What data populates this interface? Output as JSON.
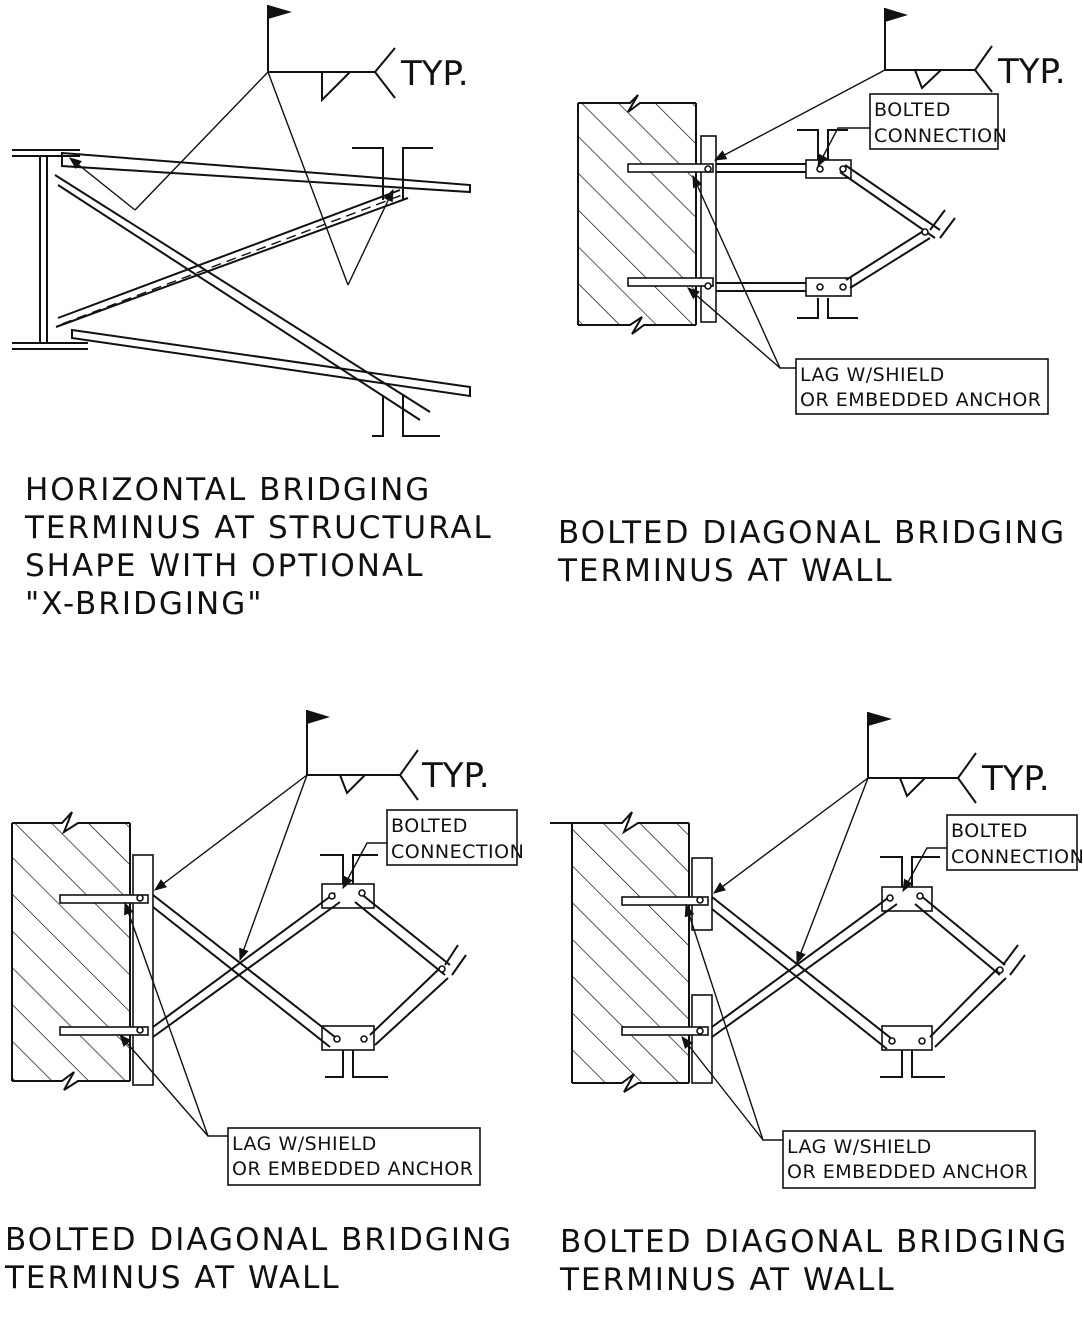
{
  "weld_note": "TYP.",
  "panels": [
    {
      "caption_lines": [
        "HORIZONTAL BRIDGING",
        "TERMINUS AT STRUCTURAL",
        "SHAPE WITH OPTIONAL",
        "\"X-BRIDGING\""
      ]
    },
    {
      "caption_lines": [
        "BOLTED DIAGONAL BRIDGING",
        "TERMINUS AT WALL"
      ],
      "bolted_label": [
        "BOLTED",
        "CONNECTION"
      ],
      "anchor_label": [
        "LAG W/SHIELD",
        "OR EMBEDDED ANCHOR"
      ]
    },
    {
      "caption_lines": [
        "BOLTED DIAGONAL BRIDGING",
        "TERMINUS AT WALL"
      ],
      "bolted_label": [
        "BOLTED",
        "CONNECTION"
      ],
      "anchor_label": [
        "LAG W/SHIELD",
        "OR EMBEDDED ANCHOR"
      ]
    },
    {
      "caption_lines": [
        "BOLTED DIAGONAL BRIDGING",
        "TERMINUS AT WALL"
      ],
      "bolted_label": [
        "BOLTED",
        "CONNECTION"
      ],
      "anchor_label": [
        "LAG W/SHIELD",
        "OR EMBEDDED ANCHOR"
      ]
    }
  ]
}
